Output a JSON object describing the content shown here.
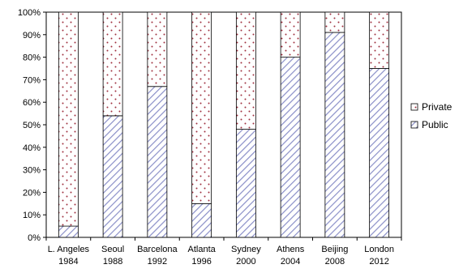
{
  "chart_data": {
    "type": "bar",
    "stacked": true,
    "categories": [
      [
        "L. Angeles",
        "1984"
      ],
      [
        "Seoul",
        "1988"
      ],
      [
        "Barcelona",
        "1992"
      ],
      [
        "Atlanta",
        "1996"
      ],
      [
        "Sydney",
        "2000"
      ],
      [
        "Athens",
        "2004"
      ],
      [
        "Beijing",
        "2008"
      ],
      [
        "London",
        "2012"
      ]
    ],
    "series": [
      {
        "name": "Public",
        "pattern": "diagonal-hatch",
        "color": "#8a8fc8",
        "values": [
          5,
          54,
          67,
          15,
          48,
          80,
          91,
          75
        ]
      },
      {
        "name": "Private",
        "pattern": "dots",
        "color": "#a03040",
        "values": [
          95,
          46,
          33,
          85,
          52,
          20,
          9,
          25
        ]
      }
    ],
    "ylim": [
      0,
      100
    ],
    "yticks": [
      "0%",
      "10%",
      "20%",
      "30%",
      "40%",
      "50%",
      "60%",
      "70%",
      "80%",
      "90%",
      "100%"
    ],
    "legend": {
      "position": "right",
      "order": [
        "Private",
        "Public"
      ]
    },
    "grid": false
  }
}
